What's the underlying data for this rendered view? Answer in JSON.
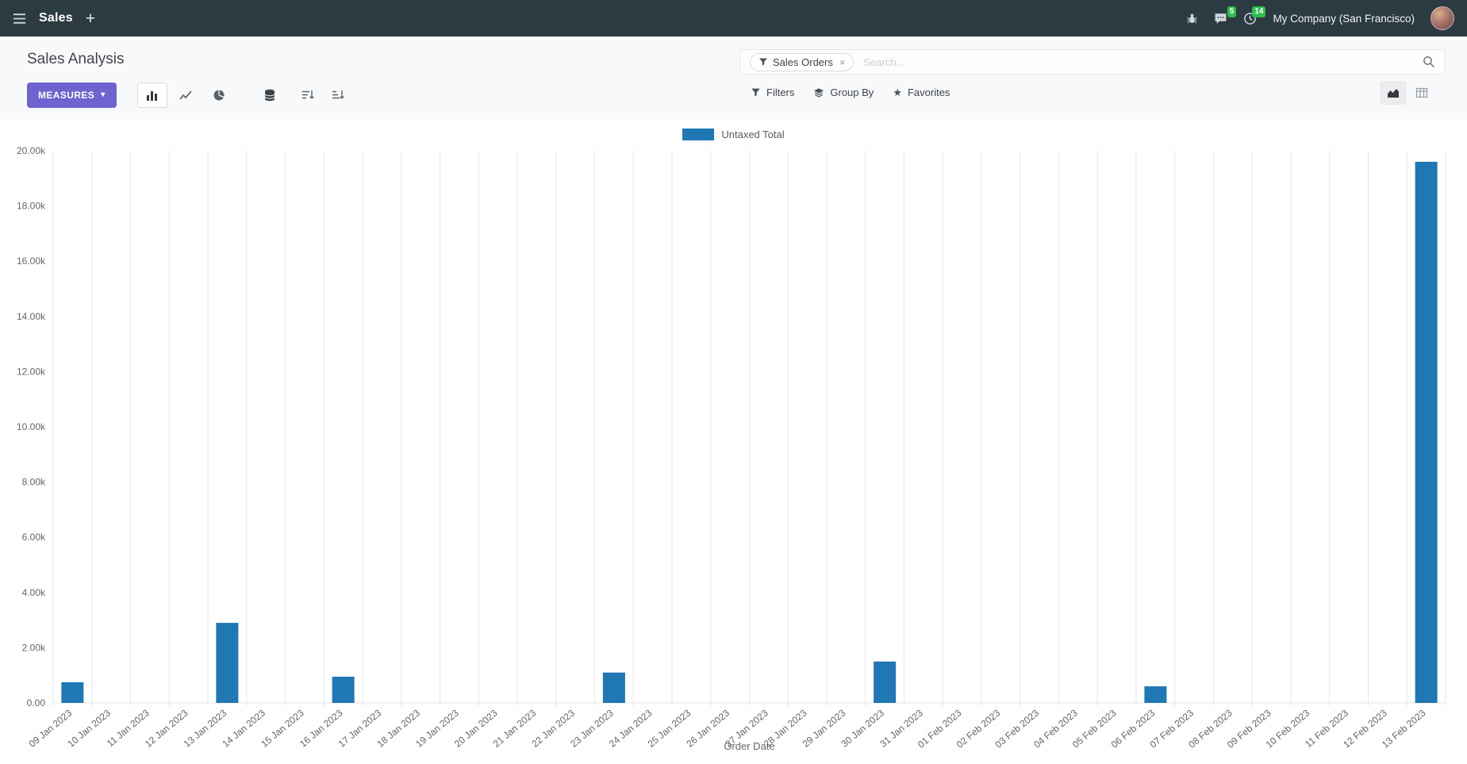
{
  "navbar": {
    "app_name": "Sales",
    "company": "My Company (San Francisco)",
    "messages_badge": "5",
    "activities_badge": "14"
  },
  "control_panel": {
    "title": "Sales Analysis",
    "measures_label": "MEASURES",
    "search": {
      "facet_label": "Sales Orders",
      "placeholder": "Search..."
    },
    "filters_label": "Filters",
    "group_by_label": "Group By",
    "favorites_label": "Favorites"
  },
  "icons": {
    "plus": "+",
    "caret_down": "▾",
    "close": "×",
    "star": "★"
  },
  "chart_data": {
    "type": "bar",
    "stacked": true,
    "title": "",
    "xlabel": "Order Date",
    "ylabel": "",
    "ylim": [
      0,
      20000
    ],
    "yticks": [
      0,
      2000,
      4000,
      6000,
      8000,
      10000,
      12000,
      14000,
      16000,
      18000,
      20000
    ],
    "ytick_labels": [
      "0.00",
      "2.00k",
      "4.00k",
      "6.00k",
      "8.00k",
      "10.00k",
      "12.00k",
      "14.00k",
      "16.00k",
      "18.00k",
      "20.00k"
    ],
    "grid": "vertical",
    "legend_position": "top",
    "categories": [
      "09 Jan 2023",
      "10 Jan 2023",
      "11 Jan 2023",
      "12 Jan 2023",
      "13 Jan 2023",
      "14 Jan 2023",
      "15 Jan 2023",
      "16 Jan 2023",
      "17 Jan 2023",
      "18 Jan 2023",
      "19 Jan 2023",
      "20 Jan 2023",
      "21 Jan 2023",
      "22 Jan 2023",
      "23 Jan 2023",
      "24 Jan 2023",
      "25 Jan 2023",
      "26 Jan 2023",
      "27 Jan 2023",
      "28 Jan 2023",
      "29 Jan 2023",
      "30 Jan 2023",
      "31 Jan 2023",
      "01 Feb 2023",
      "02 Feb 2023",
      "03 Feb 2023",
      "04 Feb 2023",
      "05 Feb 2023",
      "06 Feb 2023",
      "07 Feb 2023",
      "08 Feb 2023",
      "09 Feb 2023",
      "10 Feb 2023",
      "11 Feb 2023",
      "12 Feb 2023",
      "13 Feb 2023"
    ],
    "series": [
      {
        "name": "Untaxed Total",
        "color": "#1f77b4",
        "values": [
          750,
          0,
          0,
          0,
          2900,
          0,
          0,
          950,
          0,
          0,
          0,
          0,
          0,
          0,
          1100,
          0,
          0,
          0,
          0,
          0,
          0,
          1500,
          0,
          0,
          0,
          0,
          0,
          0,
          600,
          0,
          0,
          0,
          0,
          0,
          0,
          19600
        ]
      }
    ]
  }
}
